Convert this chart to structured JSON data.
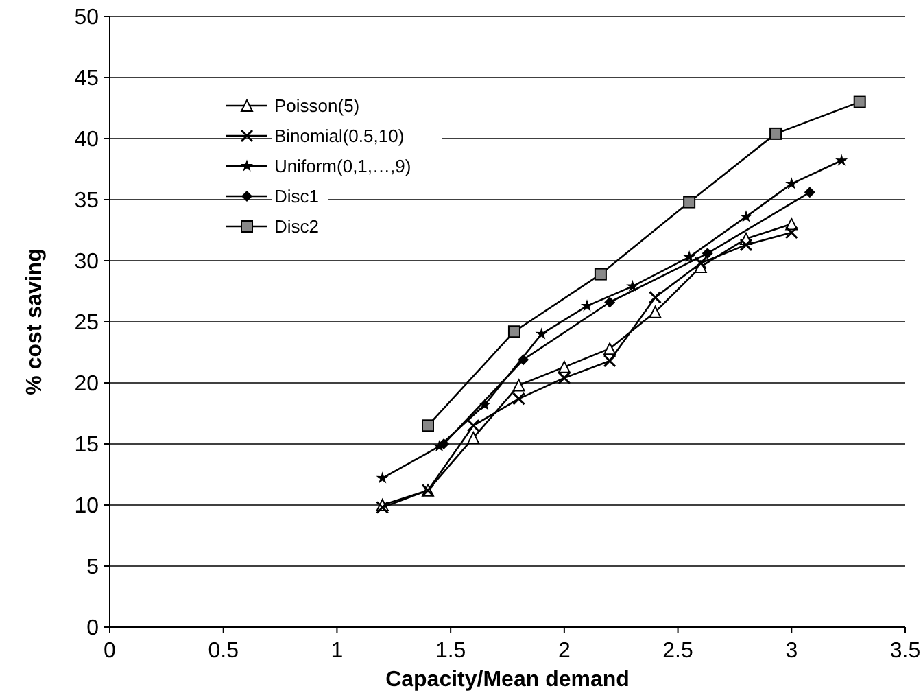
{
  "chart_data": {
    "type": "line",
    "xlabel": "Capacity/Mean demand",
    "ylabel": "% cost saving",
    "xlim": [
      0,
      3.5
    ],
    "xticks": [
      0,
      0.5,
      1,
      1.5,
      2,
      2.5,
      3,
      3.5
    ],
    "ylim": [
      0,
      50
    ],
    "yticks": [
      0,
      5,
      10,
      15,
      20,
      25,
      30,
      35,
      40,
      45,
      50
    ],
    "grid": "y",
    "legend": "top left",
    "series": [
      {
        "name": "Poisson(5)",
        "color": "#000000",
        "marker": "triangle",
        "x": [
          1.2,
          1.4,
          1.6,
          1.8,
          2.0,
          2.2,
          2.4,
          2.6,
          2.8,
          3.0
        ],
        "values": [
          10,
          11.2,
          15.5,
          19.8,
          21.3,
          22.8,
          25.8,
          29.5,
          31.8,
          33
        ]
      },
      {
        "name": "Binomial(0.5,10)",
        "color": "#000000",
        "marker": "cross",
        "x": [
          1.2,
          1.4,
          1.6,
          1.8,
          2.0,
          2.2,
          2.4,
          2.6,
          2.8,
          3.0
        ],
        "values": [
          9.8,
          11.2,
          16.5,
          18.7,
          20.4,
          21.8,
          27,
          29.8,
          31.3,
          32.3
        ]
      },
      {
        "name": "Uniform(0,1,…,9)",
        "color": "#000000",
        "marker": "star",
        "x": [
          1.2,
          1.45,
          1.65,
          1.9,
          2.1,
          2.3,
          2.55,
          2.8,
          3.0,
          3.22
        ],
        "values": [
          12.2,
          14.8,
          18.2,
          24,
          26.3,
          27.9,
          30.3,
          33.6,
          36.3,
          38.2
        ]
      },
      {
        "name": "Disc1",
        "color": "#000000",
        "marker": "diamond",
        "x": [
          1.47,
          1.82,
          2.2,
          2.63,
          3.08
        ],
        "values": [
          15,
          21.9,
          26.6,
          30.6,
          35.6
        ]
      },
      {
        "name": "Disc2",
        "color": "#000000",
        "marker": "square",
        "x": [
          1.4,
          1.78,
          2.16,
          2.55,
          2.93,
          3.3
        ],
        "values": [
          16.5,
          24.2,
          28.9,
          34.8,
          40.4,
          43
        ]
      }
    ]
  }
}
